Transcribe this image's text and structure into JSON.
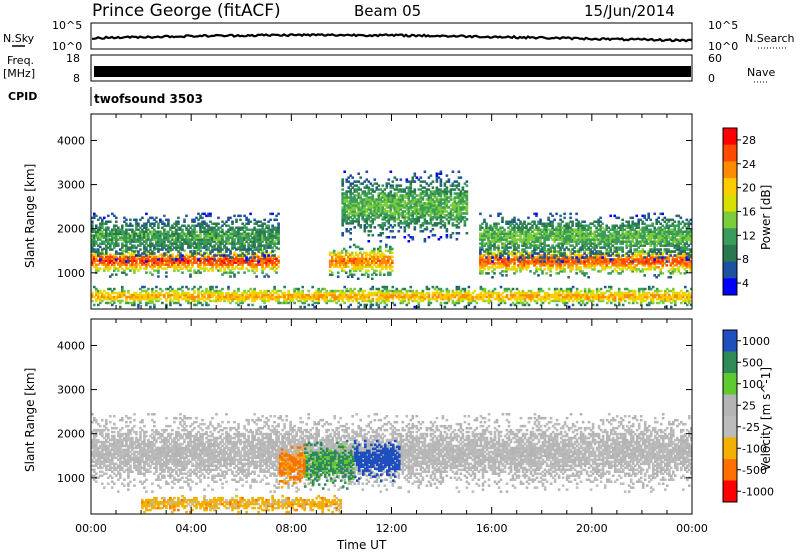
{
  "header": {
    "station": "Prince George (fitACF)",
    "beam": "Beam 05",
    "date": "15/Jun/2014"
  },
  "left_labels": {
    "nsky": "N.Sky",
    "freq_line1": "Freq.",
    "freq_line2": "[MHz]",
    "cpid": "CPID"
  },
  "right_labels": {
    "nsearch": "N.Search",
    "nave": "Nave"
  },
  "noise_panel": {
    "ytick_top": "10^5",
    "ytick_bottom": "10^0",
    "rtick_top": "10^5",
    "rtick_bottom": "10^0"
  },
  "freq_panel": {
    "ytick_top": "18",
    "ytick_bottom": "8",
    "rtick_top": "60",
    "rtick_bottom": "0"
  },
  "cpid_panel": {
    "text": "twofsound 3503"
  },
  "power_colorbar": {
    "label": "Power [dB]",
    "ticks": [
      "28",
      "24",
      "20",
      "16",
      "12",
      "8",
      "4"
    ],
    "colors": [
      "#ff0000",
      "#ff4a00",
      "#ff8c00",
      "#ffcc00",
      "#d8e000",
      "#7ccd3a",
      "#3a9c5a",
      "#2a7850",
      "#2050a0",
      "#0000ff"
    ]
  },
  "velocity_colorbar": {
    "label": "Velocity [m s^-1]",
    "ticks": [
      "1000",
      "500",
      "100",
      "25",
      "-25",
      "-100",
      "-500",
      "-1000"
    ],
    "colors": [
      "#1f4fbf",
      "#2e8a57",
      "#5fc930",
      "#b4b4b4",
      "#bcbcbc",
      "#f2b000",
      "#ff7000",
      "#ff0000"
    ]
  },
  "chart_data": [
    {
      "type": "heatmap",
      "panel": "power",
      "xlabel": "",
      "ylabel": "Slant Range [km]",
      "xlim": [
        0,
        24
      ],
      "ylim": [
        180,
        4600
      ],
      "yticks": [
        1000,
        2000,
        3000,
        4000
      ],
      "xticks_hours": [
        0,
        4,
        8,
        12,
        16,
        20,
        24
      ],
      "colorbar_range": [
        0,
        30
      ],
      "colorbar_label": "Power [dB]",
      "echo_bands": [
        {
          "t0": 0,
          "t1": 7.5,
          "r_center": 1250,
          "r_half": 220,
          "power": 27
        },
        {
          "t0": 0,
          "t1": 7.5,
          "r_center": 1800,
          "r_half": 350,
          "power": 10
        },
        {
          "t0": 9.5,
          "t1": 12.0,
          "r_center": 1250,
          "r_half": 250,
          "power": 24
        },
        {
          "t0": 10.0,
          "t1": 15.0,
          "r_center": 2500,
          "r_half": 500,
          "power": 12
        },
        {
          "t0": 15.5,
          "t1": 24,
          "r_center": 1250,
          "r_half": 230,
          "power": 26
        },
        {
          "t0": 15.5,
          "t1": 24,
          "r_center": 1800,
          "r_half": 350,
          "power": 12
        },
        {
          "t0": 0,
          "t1": 24,
          "r_center": 450,
          "r_half": 150,
          "power": 22
        }
      ]
    },
    {
      "type": "heatmap",
      "panel": "velocity",
      "xlabel": "Time UT",
      "ylabel": "Slant Range [km]",
      "xlim": [
        0,
        24
      ],
      "ylim": [
        180,
        4600
      ],
      "yticks": [
        1000,
        2000,
        3000,
        4000
      ],
      "xticks": [
        "00:00",
        "04:00",
        "08:00",
        "12:00",
        "16:00",
        "20:00",
        "00:00"
      ],
      "xticks_hours": [
        0,
        4,
        8,
        12,
        16,
        20,
        24
      ],
      "colorbar_label": "Velocity [m s^-1]",
      "echo_bands": [
        {
          "t0": 0,
          "t1": 24,
          "r_center": 1550,
          "r_half": 550,
          "velocity": 0
        },
        {
          "t0": 10.5,
          "t1": 12.3,
          "r_center": 1400,
          "r_half": 300,
          "velocity": 1000
        },
        {
          "t0": 8.5,
          "t1": 10.5,
          "r_center": 1300,
          "r_half": 350,
          "velocity": 300
        },
        {
          "t0": 7.5,
          "t1": 8.5,
          "r_center": 1250,
          "r_half": 300,
          "velocity": -300
        },
        {
          "t0": 2.0,
          "t1": 10.0,
          "r_center": 400,
          "r_half": 120,
          "velocity": -150
        }
      ]
    }
  ]
}
